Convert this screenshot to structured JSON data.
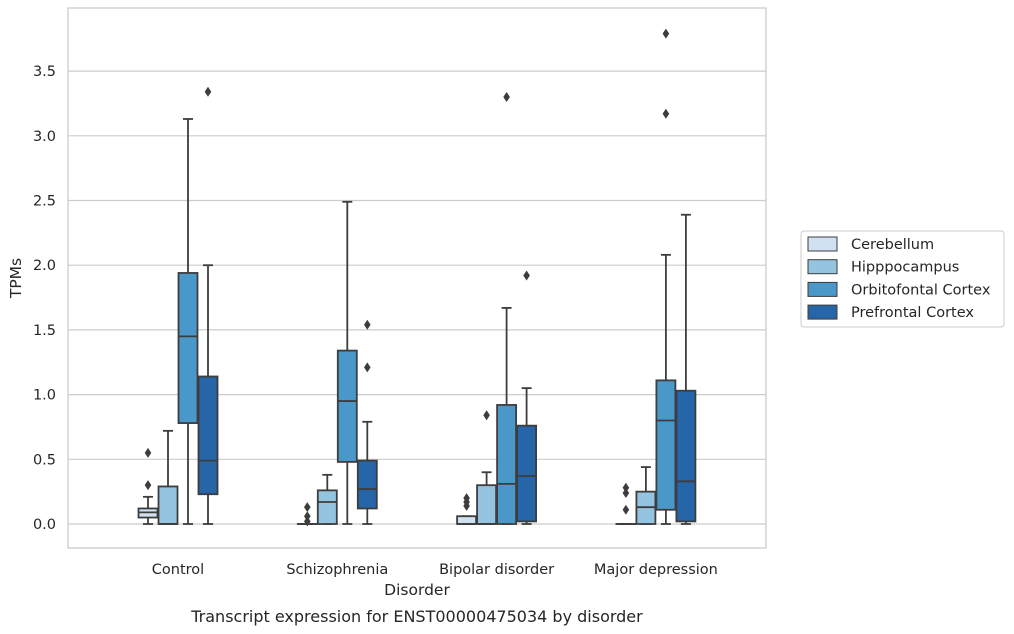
{
  "chart_data": {
    "type": "box",
    "caption": "Transcript expression for ENST00000475034 by disorder",
    "xlabel": "Disorder",
    "ylabel": "TPMs",
    "ylim": [
      -0.18,
      3.98
    ],
    "yticks": [
      "0.0",
      "0.5",
      "1.0",
      "1.5",
      "2.0",
      "2.5",
      "3.0",
      "3.5"
    ],
    "grid": "horizontal",
    "legend_position": "right",
    "categories": [
      "Control",
      "Schizophrenia",
      "Bipolar disorder",
      "Major depression"
    ],
    "series": [
      {
        "name": "Cerebellum",
        "color": "#d0e1f2",
        "boxes": [
          {
            "q1": 0.05,
            "median": 0.09,
            "q3": 0.12,
            "whislo": 0.0,
            "whishi": 0.21,
            "fliers": [
              0.3,
              0.55
            ]
          },
          {
            "q1": 0.0,
            "median": 0.0,
            "q3": 0.0,
            "whislo": 0.0,
            "whishi": 0.0,
            "fliers": [
              0.02,
              0.06,
              0.13
            ]
          },
          {
            "q1": 0.0,
            "median": 0.0,
            "q3": 0.06,
            "whislo": 0.0,
            "whishi": 0.06,
            "fliers": [
              0.14,
              0.17,
              0.2
            ]
          },
          {
            "q1": 0.0,
            "median": 0.0,
            "q3": 0.0,
            "whislo": 0.0,
            "whishi": 0.0,
            "fliers": [
              0.11,
              0.24,
              0.28
            ]
          }
        ]
      },
      {
        "name": "Hipppocampus",
        "color": "#94c4df",
        "boxes": [
          {
            "q1": 0.0,
            "median": 0.0,
            "q3": 0.29,
            "whislo": 0.0,
            "whishi": 0.72,
            "fliers": []
          },
          {
            "q1": 0.0,
            "median": 0.17,
            "q3": 0.26,
            "whislo": 0.0,
            "whishi": 0.38,
            "fliers": []
          },
          {
            "q1": 0.0,
            "median": 0.0,
            "q3": 0.3,
            "whislo": 0.0,
            "whishi": 0.4,
            "fliers": [
              0.84
            ]
          },
          {
            "q1": 0.0,
            "median": 0.13,
            "q3": 0.25,
            "whislo": 0.0,
            "whishi": 0.44,
            "fliers": []
          }
        ]
      },
      {
        "name": "Orbitofontal Cortex",
        "color": "#4a98c9",
        "boxes": [
          {
            "q1": 0.78,
            "median": 1.45,
            "q3": 1.94,
            "whislo": 0.0,
            "whishi": 3.13,
            "fliers": []
          },
          {
            "q1": 0.48,
            "median": 0.95,
            "q3": 1.34,
            "whislo": 0.0,
            "whishi": 2.49,
            "fliers": []
          },
          {
            "q1": 0.0,
            "median": 0.31,
            "q3": 0.92,
            "whislo": 0.0,
            "whishi": 1.67,
            "fliers": [
              3.3
            ]
          },
          {
            "q1": 0.11,
            "median": 0.8,
            "q3": 1.11,
            "whislo": 0.0,
            "whishi": 2.08,
            "fliers": [
              3.17,
              3.79
            ]
          }
        ]
      },
      {
        "name": "Prefrontal Cortex",
        "color": "#2565a8",
        "boxes": [
          {
            "q1": 0.23,
            "median": 0.49,
            "q3": 1.14,
            "whislo": 0.0,
            "whishi": 2.0,
            "fliers": [
              3.34
            ]
          },
          {
            "q1": 0.12,
            "median": 0.27,
            "q3": 0.49,
            "whislo": 0.0,
            "whishi": 0.79,
            "fliers": [
              1.21,
              1.54
            ]
          },
          {
            "q1": 0.02,
            "median": 0.37,
            "q3": 0.76,
            "whislo": 0.0,
            "whishi": 1.05,
            "fliers": [
              1.92
            ]
          },
          {
            "q1": 0.02,
            "median": 0.33,
            "q3": 1.03,
            "whislo": 0.0,
            "whishi": 2.39,
            "fliers": []
          }
        ]
      }
    ]
  }
}
